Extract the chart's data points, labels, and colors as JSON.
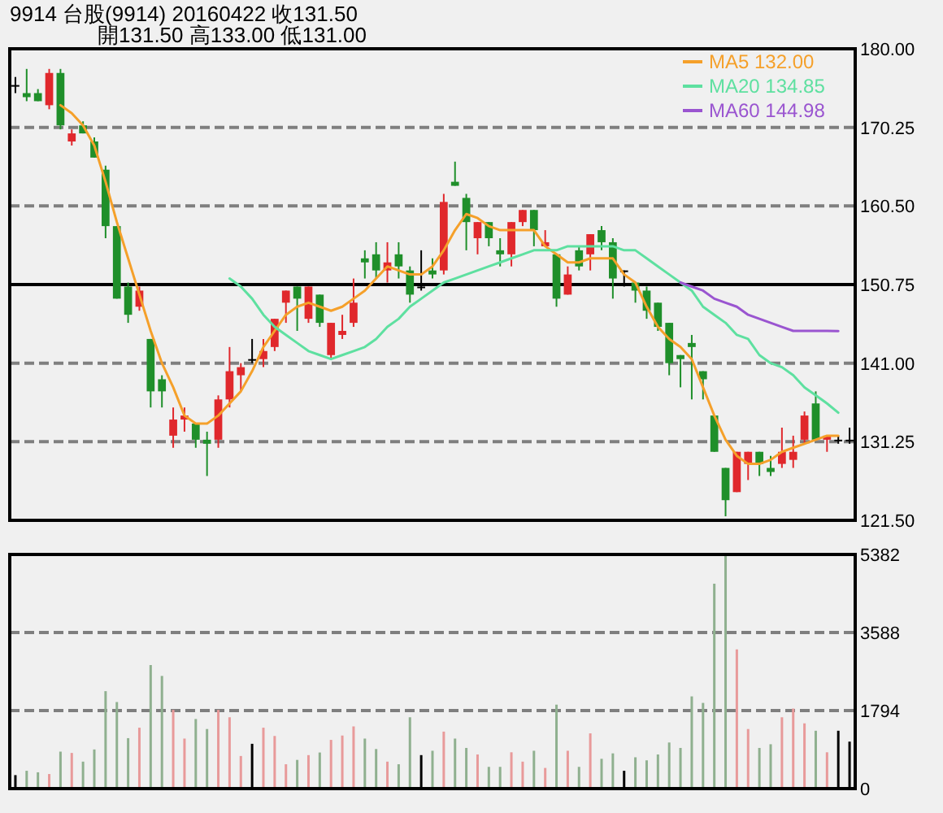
{
  "chart_data": [
    {
      "type": "candlestick",
      "title": "9914  台股(9914) 20160422    收131.50",
      "subtitle": "開131.50    高133.00    低131.00",
      "categories": [
        null,
        null,
        null,
        null,
        null,
        null,
        null,
        null,
        null,
        null,
        null,
        null,
        null,
        null,
        null,
        null,
        null,
        null,
        null,
        null,
        null,
        null,
        null,
        null,
        null,
        null,
        null,
        null,
        null,
        null,
        null,
        null,
        null,
        null,
        null,
        null,
        null,
        null,
        null,
        null,
        null,
        null,
        null,
        null,
        null,
        null,
        null,
        null,
        null,
        null,
        null,
        null,
        null,
        null,
        null,
        null,
        null,
        null,
        null,
        null,
        null,
        null,
        null,
        null,
        null,
        null,
        null,
        null,
        null,
        null,
        null,
        null,
        null,
        null,
        null
      ],
      "series": [
        {
          "type": "candlestick",
          "ohlc": [
            [
              175.5,
              176.5,
              174.5,
              175.5
            ],
            [
              174.5,
              177.5,
              173.5,
              174
            ],
            [
              174.5,
              175,
              173.5,
              173.5
            ],
            [
              173,
              177.5,
              172.5,
              177
            ],
            [
              177,
              177.5,
              170,
              170.5
            ],
            [
              168.5,
              170,
              168,
              169.5
            ],
            [
              170.5,
              171,
              169.5,
              169.5
            ],
            [
              168.5,
              169,
              166.5,
              166.5
            ],
            [
              165,
              165.5,
              156.5,
              158
            ],
            [
              158,
              158,
              149,
              149
            ],
            [
              150.5,
              151,
              146,
              147
            ],
            [
              148,
              150.5,
              147.5,
              150
            ],
            [
              144,
              144,
              135.5,
              137.5
            ],
            [
              139,
              139.5,
              135.5,
              137.5
            ],
            [
              132,
              135.5,
              130.5,
              134
            ],
            [
              134,
              135.5,
              132.5,
              134.5
            ],
            [
              133.5,
              133.5,
              130.5,
              131.5
            ],
            [
              131.5,
              132.5,
              127,
              131
            ],
            [
              131.5,
              137,
              130.5,
              136.5
            ],
            [
              136.5,
              143,
              135.5,
              140
            ],
            [
              139.5,
              141,
              137.5,
              140.5
            ],
            [
              141.5,
              144,
              141,
              141.5
            ],
            [
              141.5,
              144,
              140.5,
              142.5
            ],
            [
              143,
              146.5,
              142.5,
              146.5
            ],
            [
              148.5,
              150,
              146,
              150
            ],
            [
              150.5,
              150.5,
              145,
              149
            ],
            [
              146.5,
              150.5,
              146,
              150.5
            ],
            [
              149.5,
              149.5,
              145.5,
              146
            ],
            [
              142,
              146,
              141.5,
              146
            ],
            [
              144.5,
              147,
              144,
              145
            ],
            [
              146,
              151.5,
              145.5,
              148.5
            ],
            [
              154,
              155,
              151.5,
              153.5
            ],
            [
              154.5,
              156,
              151.5,
              152.5
            ],
            [
              152.5,
              156,
              151,
              153.5
            ],
            [
              154.5,
              156,
              151.5,
              153
            ],
            [
              152.5,
              153,
              148.5,
              149.5
            ],
            [
              150.5,
              155,
              150,
              150.5
            ],
            [
              152.5,
              154,
              151.5,
              152
            ],
            [
              152.5,
              162,
              152,
              161
            ],
            [
              163.5,
              166,
              163,
              163
            ],
            [
              161.5,
              162,
              155,
              158.5
            ],
            [
              156.5,
              158.5,
              154.5,
              158.5
            ],
            [
              158.5,
              158.5,
              155.5,
              156.5
            ],
            [
              155,
              156.5,
              153,
              154.5
            ],
            [
              154.5,
              158.5,
              153,
              158.5
            ],
            [
              158.5,
              160,
              158,
              160
            ],
            [
              160,
              160,
              155.5,
              157.5
            ],
            [
              155.5,
              157.5,
              155.5,
              156
            ],
            [
              154.5,
              154.5,
              148,
              149
            ],
            [
              149.5,
              153,
              149.5,
              152
            ],
            [
              155,
              155.5,
              152.5,
              153
            ],
            [
              154.5,
              157,
              152.5,
              157
            ],
            [
              157.5,
              158,
              155,
              156
            ],
            [
              156,
              156.5,
              149,
              151.5
            ],
            [
              152.5,
              152.5,
              150.5,
              152.5
            ],
            [
              151,
              151,
              148.5,
              150
            ],
            [
              150,
              150.5,
              146.5,
              147.5
            ],
            [
              148.5,
              148.5,
              145,
              145.5
            ],
            [
              146,
              146,
              139.5,
              141
            ],
            [
              142,
              142,
              138,
              141.5
            ],
            [
              143.5,
              144.5,
              136.5,
              143
            ],
            [
              140,
              140,
              136.5,
              139
            ],
            [
              134.5,
              134.5,
              130,
              130
            ],
            [
              128,
              128,
              122,
              124
            ],
            [
              125,
              130,
              125,
              130
            ],
            [
              128.5,
              130,
              126.5,
              130
            ],
            [
              130,
              130,
              127,
              128.5
            ],
            [
              128,
              129.5,
              127,
              127.5
            ],
            [
              128.5,
              133,
              128,
              130
            ],
            [
              129,
              132,
              128,
              130
            ],
            [
              131.5,
              135,
              131,
              134.5
            ],
            [
              136,
              137.5,
              131.5,
              131.5
            ],
            [
              131.5,
              132,
              130,
              132
            ],
            [
              131.5,
              132,
              131,
              131.5
            ],
            [
              131.5,
              133,
              131,
              131.5
            ]
          ],
          "colors": [
            "#000000",
            "#1f8f2a",
            "#1f8f2a",
            "#e0282c",
            "#1f8f2a",
            "#e0282c",
            "#1f8f2a",
            "#1f8f2a",
            "#1f8f2a",
            "#1f8f2a",
            "#1f8f2a",
            "#e0282c",
            "#1f8f2a",
            "#1f8f2a",
            "#e0282c",
            "#e0282c",
            "#1f8f2a",
            "#1f8f2a",
            "#e0282c",
            "#e0282c",
            "#e0282c",
            "#000000",
            "#e0282c",
            "#e0282c",
            "#e0282c",
            "#1f8f2a",
            "#e0282c",
            "#1f8f2a",
            "#e0282c",
            "#e0282c",
            "#e0282c",
            "#1f8f2a",
            "#1f8f2a",
            "#e0282c",
            "#1f8f2a",
            "#1f8f2a",
            "#000000",
            "#1f8f2a",
            "#e0282c",
            "#1f8f2a",
            "#1f8f2a",
            "#e0282c",
            "#1f8f2a",
            "#1f8f2a",
            "#e0282c",
            "#e0282c",
            "#1f8f2a",
            "#e0282c",
            "#1f8f2a",
            "#e0282c",
            "#1f8f2a",
            "#e0282c",
            "#1f8f2a",
            "#1f8f2a",
            "#000000",
            "#1f8f2a",
            "#1f8f2a",
            "#1f8f2a",
            "#1f8f2a",
            "#1f8f2a",
            "#1f8f2a",
            "#1f8f2a",
            "#1f8f2a",
            "#1f8f2a",
            "#e0282c",
            "#e0282c",
            "#1f8f2a",
            "#1f8f2a",
            "#e0282c",
            "#e0282c",
            "#e0282c",
            "#1f8f2a",
            "#e0282c",
            "#000000",
            "#000000"
          ]
        },
        {
          "type": "line",
          "name": "MA5 132.00",
          "color": "#f5a02a",
          "values": [
            null,
            null,
            null,
            null,
            173,
            172,
            170.5,
            168,
            163.5,
            158.5,
            154,
            149.5,
            145,
            141,
            138,
            134.5,
            133.5,
            133.5,
            134.5,
            136,
            137.5,
            140,
            143,
            145,
            147,
            148,
            148.5,
            148,
            147.5,
            148,
            149,
            150,
            151.5,
            153,
            152.5,
            152,
            152,
            153,
            155,
            157.5,
            159.5,
            159,
            158,
            157.5,
            157.5,
            157.5,
            157.5,
            155.5,
            154.5,
            153.5,
            153.5,
            154,
            154,
            154,
            152,
            151,
            148,
            145.5,
            144,
            143,
            141.5,
            138,
            134.5,
            131.5,
            129.5,
            128.5,
            128.5,
            129,
            130,
            130.5,
            131,
            131.5,
            132,
            132,
            null
          ]
        },
        {
          "type": "line",
          "name": "MA20 134.85",
          "color": "#5ee0a0",
          "values": [
            null,
            null,
            null,
            null,
            null,
            null,
            null,
            null,
            null,
            null,
            null,
            null,
            null,
            null,
            null,
            null,
            null,
            null,
            null,
            151.5,
            150.5,
            149,
            147,
            145.5,
            144.5,
            143.5,
            142.5,
            142,
            141.5,
            142,
            142.5,
            143,
            144,
            145.5,
            146.5,
            148,
            149,
            150,
            151,
            151.5,
            152,
            152.5,
            153,
            153.5,
            154,
            154.5,
            155,
            155,
            155,
            155.5,
            155.5,
            155.5,
            155.5,
            155.5,
            155,
            155,
            154,
            153,
            152,
            151,
            150,
            148,
            147,
            146,
            144.5,
            144,
            142,
            141,
            140.5,
            139.5,
            138,
            137,
            136,
            134.85,
            null
          ]
        },
        {
          "type": "line",
          "name": "MA60 144.98",
          "color": "#9a55d0",
          "values": [
            null,
            null,
            null,
            null,
            null,
            null,
            null,
            null,
            null,
            null,
            null,
            null,
            null,
            null,
            null,
            null,
            null,
            null,
            null,
            null,
            null,
            null,
            null,
            null,
            null,
            null,
            null,
            null,
            null,
            null,
            null,
            null,
            null,
            null,
            null,
            null,
            null,
            null,
            null,
            null,
            null,
            null,
            null,
            null,
            null,
            null,
            null,
            null,
            null,
            null,
            null,
            null,
            null,
            null,
            null,
            null,
            null,
            null,
            null,
            151,
            150.5,
            150,
            149,
            148.5,
            148,
            147,
            146.5,
            146,
            145.5,
            145,
            145,
            145,
            145,
            144.98,
            null
          ]
        }
      ],
      "ylim": [
        121.5,
        180
      ],
      "yticks": [
        {
          "value": 121.5,
          "label": "121.50"
        },
        {
          "value": 131.25,
          "label": "131.25"
        },
        {
          "value": 141,
          "label": "141.00"
        },
        {
          "value": 150.75,
          "label": "150.75"
        },
        {
          "value": 160.5,
          "label": "160.50"
        },
        {
          "value": 170.25,
          "label": "170.25"
        },
        {
          "value": 180,
          "label": "180.00"
        }
      ],
      "ref_lines": [
        {
          "axis": "y",
          "value": 150.75,
          "color": "#000000",
          "line_style": "solid"
        }
      ],
      "grid": "y",
      "legend": "top right",
      "tick_labels": "y"
    },
    {
      "type": "bar",
      "categories": [
        null,
        null,
        null,
        null,
        null,
        null,
        null,
        null,
        null,
        null,
        null,
        null,
        null,
        null,
        null,
        null,
        null,
        null,
        null,
        null,
        null,
        null,
        null,
        null,
        null,
        null,
        null,
        null,
        null,
        null,
        null,
        null,
        null,
        null,
        null,
        null,
        null,
        null,
        null,
        null,
        null,
        null,
        null,
        null,
        null,
        null,
        null,
        null,
        null,
        null,
        null,
        null,
        null,
        null,
        null,
        null,
        null,
        null,
        null,
        null,
        null,
        null,
        null,
        null,
        null,
        null,
        null,
        null,
        null,
        null,
        null,
        null,
        null,
        null,
        null
      ],
      "values": [
        310,
        410,
        375,
        335,
        850,
        820,
        620,
        900,
        2240,
        1990,
        1160,
        1400,
        2840,
        2590,
        1810,
        1150,
        1600,
        1370,
        1810,
        1640,
        750,
        1030,
        1400,
        1210,
        560,
        660,
        770,
        830,
        1120,
        1220,
        1430,
        1150,
        910,
        620,
        560,
        1640,
        770,
        870,
        1310,
        1150,
        935,
        785,
        500,
        500,
        835,
        620,
        870,
        475,
        1930,
        870,
        500,
        1270,
        685,
        810,
        410,
        720,
        650,
        785,
        1060,
        935,
        2120,
        1970,
        4710,
        5382,
        3200,
        1370,
        935,
        1020,
        1640,
        1840,
        1500,
        1330,
        835,
        1330,
        1080
      ],
      "colors": [
        "#000000",
        "#8fb08f",
        "#8fb08f",
        "#e89a9a",
        "#8fb08f",
        "#e89a9a",
        "#8fb08f",
        "#8fb08f",
        "#8fb08f",
        "#8fb08f",
        "#8fb08f",
        "#e89a9a",
        "#8fb08f",
        "#8fb08f",
        "#e89a9a",
        "#e89a9a",
        "#8fb08f",
        "#8fb08f",
        "#e89a9a",
        "#e89a9a",
        "#e89a9a",
        "#000000",
        "#e89a9a",
        "#e89a9a",
        "#e89a9a",
        "#8fb08f",
        "#e89a9a",
        "#8fb08f",
        "#e89a9a",
        "#e89a9a",
        "#e89a9a",
        "#8fb08f",
        "#8fb08f",
        "#e89a9a",
        "#8fb08f",
        "#8fb08f",
        "#000000",
        "#8fb08f",
        "#e89a9a",
        "#8fb08f",
        "#8fb08f",
        "#e89a9a",
        "#8fb08f",
        "#8fb08f",
        "#e89a9a",
        "#e89a9a",
        "#8fb08f",
        "#e89a9a",
        "#8fb08f",
        "#e89a9a",
        "#8fb08f",
        "#e89a9a",
        "#8fb08f",
        "#8fb08f",
        "#000000",
        "#8fb08f",
        "#8fb08f",
        "#8fb08f",
        "#8fb08f",
        "#8fb08f",
        "#8fb08f",
        "#8fb08f",
        "#8fb08f",
        "#8fb08f",
        "#e89a9a",
        "#e89a9a",
        "#8fb08f",
        "#8fb08f",
        "#e89a9a",
        "#e89a9a",
        "#e89a9a",
        "#8fb08f",
        "#e89a9a",
        "#000000",
        "#000000"
      ],
      "ylim": [
        0,
        5382
      ],
      "yticks": [
        0,
        1794,
        3588,
        5382
      ],
      "grid": "y",
      "tick_labels": "y"
    }
  ]
}
